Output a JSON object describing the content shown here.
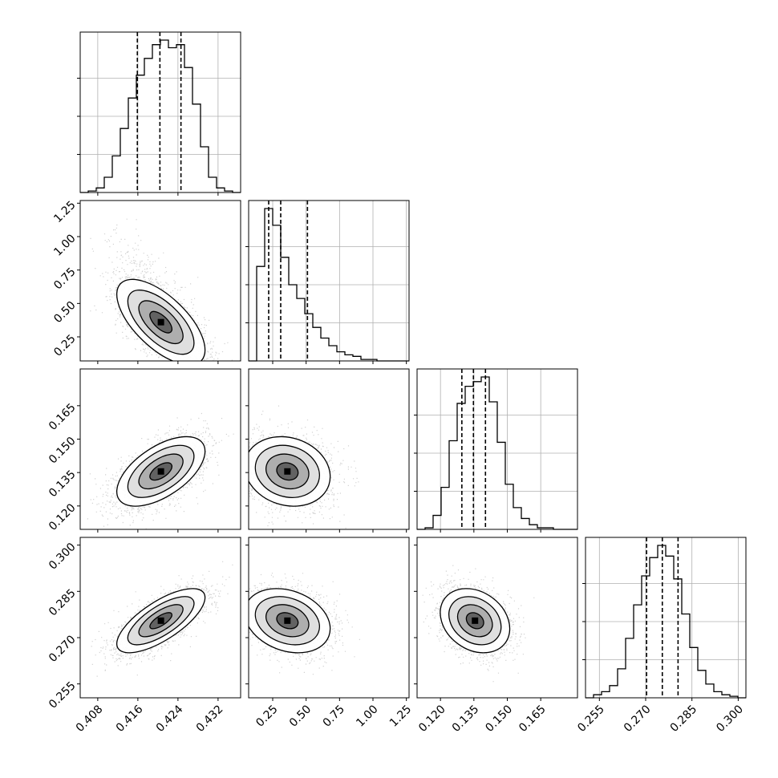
{
  "chart_data": {
    "type": "corner",
    "dims": [
      {
        "range": [
          0.4045,
          0.4365
        ],
        "ticks": [
          0.408,
          0.416,
          0.424,
          0.432
        ],
        "tick_labels": [
          "0.408",
          "0.416",
          "0.424",
          "0.432"
        ],
        "quantiles": [
          0.4159,
          0.4204,
          0.4246
        ],
        "hist_edges": [
          0.4045,
          0.4061,
          0.4077,
          0.4093,
          0.4109,
          0.4125,
          0.4141,
          0.4157,
          0.4173,
          0.4189,
          0.4205,
          0.4221,
          0.4237,
          0.4253,
          0.4269,
          0.4285,
          0.4301,
          0.4317,
          0.4333,
          0.4349,
          0.4365
        ],
        "hist_counts": [
          0.0,
          0.01,
          0.03,
          0.1,
          0.24,
          0.42,
          0.62,
          0.77,
          0.88,
          0.97,
          1.0,
          0.95,
          0.97,
          0.82,
          0.58,
          0.3,
          0.1,
          0.03,
          0.01,
          0.0
        ]
      },
      {
        "range": [
          0.07,
          1.27
        ],
        "ticks": [
          0.25,
          0.5,
          0.75,
          1.0,
          1.25
        ],
        "tick_labels": [
          "0.25",
          "0.50",
          "0.75",
          "1.00",
          "1.25"
        ],
        "quantiles": [
          0.22,
          0.31,
          0.51
        ],
        "hist_edges": [
          0.07,
          0.13,
          0.19,
          0.25,
          0.31,
          0.37,
          0.43,
          0.49,
          0.55,
          0.61,
          0.67,
          0.73,
          0.79,
          0.85,
          0.91,
          0.97,
          1.03,
          1.09,
          1.15,
          1.21,
          1.27
        ],
        "hist_counts": [
          0.0,
          0.62,
          1.0,
          0.89,
          0.68,
          0.5,
          0.41,
          0.31,
          0.22,
          0.15,
          0.1,
          0.06,
          0.04,
          0.03,
          0.01,
          0.01,
          0.0,
          0.0,
          0.0,
          0.0
        ]
      },
      {
        "range": [
          0.1095,
          0.1815
        ],
        "ticks": [
          0.12,
          0.135,
          0.15,
          0.165
        ],
        "tick_labels": [
          "0.120",
          "0.135",
          "0.150",
          "0.165"
        ],
        "quantiles": [
          0.1296,
          0.1348,
          0.1402
        ],
        "hist_edges": [
          0.1095,
          0.1131,
          0.1167,
          0.1203,
          0.1239,
          0.1275,
          0.1311,
          0.1347,
          0.1383,
          0.1419,
          0.1455,
          0.1491,
          0.1527,
          0.1563,
          0.1599,
          0.1635,
          0.1671,
          0.1707,
          0.1743,
          0.1779,
          0.1815
        ],
        "hist_counts": [
          0.0,
          0.01,
          0.09,
          0.27,
          0.57,
          0.81,
          0.92,
          0.95,
          0.98,
          0.82,
          0.56,
          0.29,
          0.14,
          0.07,
          0.03,
          0.01,
          0.01,
          0.0,
          0.0,
          0.0
        ]
      },
      {
        "range": [
          0.2505,
          0.3025
        ],
        "ticks": [
          0.255,
          0.27,
          0.285,
          0.3
        ],
        "tick_labels": [
          "0.255",
          "0.270",
          "0.285",
          "0.300"
        ],
        "quantiles": [
          0.2703,
          0.2754,
          0.2805
        ],
        "hist_edges": [
          0.2505,
          0.2531,
          0.2557,
          0.2583,
          0.2609,
          0.2635,
          0.2661,
          0.2687,
          0.2713,
          0.2739,
          0.2765,
          0.2791,
          0.2817,
          0.2843,
          0.2869,
          0.2895,
          0.2921,
          0.2947,
          0.2973,
          0.2999,
          0.3025
        ],
        "hist_counts": [
          0.0,
          0.02,
          0.04,
          0.08,
          0.19,
          0.39,
          0.61,
          0.8,
          0.92,
          1.0,
          0.93,
          0.78,
          0.55,
          0.33,
          0.18,
          0.09,
          0.04,
          0.02,
          0.01,
          0.0
        ]
      }
    ],
    "pairs": [
      {
        "x": 0,
        "y": 1,
        "mean": [
          0.4206,
          0.36
        ],
        "std": [
          0.0044,
          0.16
        ],
        "corr": -0.65,
        "skew_y": 0.25
      },
      {
        "x": 0,
        "y": 2,
        "mean": [
          0.4206,
          0.1355
        ],
        "std": [
          0.0044,
          0.0078
        ],
        "corr": 0.58,
        "skew_y": 0
      },
      {
        "x": 1,
        "y": 2,
        "mean": [
          0.36,
          0.1355
        ],
        "std": [
          0.16,
          0.0078
        ],
        "corr": -0.15,
        "skew_y": 0
      },
      {
        "x": 0,
        "y": 3,
        "mean": [
          0.4206,
          0.2755
        ],
        "std": [
          0.0044,
          0.0052
        ],
        "corr": 0.72,
        "skew_y": 0
      },
      {
        "x": 1,
        "y": 3,
        "mean": [
          0.36,
          0.2755
        ],
        "std": [
          0.16,
          0.0052
        ],
        "corr": -0.25,
        "skew_y": 0
      },
      {
        "x": 2,
        "y": 3,
        "mean": [
          0.1355,
          0.2755
        ],
        "std": [
          0.0078,
          0.0052
        ],
        "corr": -0.25,
        "skew_y": 0
      }
    ],
    "colors": {
      "line": "#000000",
      "grid": "#b0b0b0",
      "points": "#000000"
    },
    "grid": true,
    "legend": "none"
  }
}
